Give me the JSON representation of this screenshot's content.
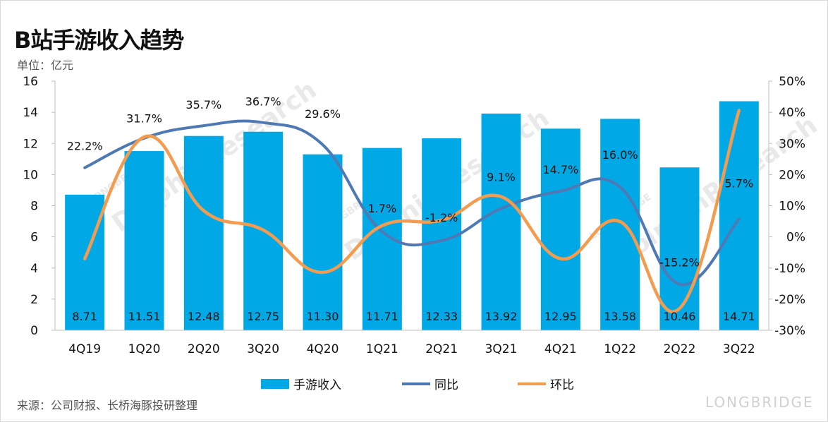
{
  "title": "B站手游收入趋势",
  "unit_label": "单位：亿元",
  "source_note": "来源：公司财报、长桥海豚投研整理",
  "watermark": {
    "brand": "LONGBRIDGE",
    "research": "DolphinResearch"
  },
  "colors": {
    "bar": "#00a9e6",
    "yoy": "#4e79b5",
    "qoq": "#f39c4f"
  },
  "chart_data": {
    "type": "bar",
    "categories": [
      "4Q19",
      "1Q20",
      "2Q20",
      "3Q20",
      "4Q20",
      "1Q21",
      "2Q21",
      "3Q21",
      "4Q21",
      "1Q22",
      "2Q22",
      "3Q22"
    ],
    "series": [
      {
        "name": "手游收入",
        "type": "bar",
        "axis": "left",
        "values": [
          8.71,
          11.51,
          12.48,
          12.75,
          11.3,
          11.71,
          12.33,
          13.92,
          12.95,
          13.58,
          10.46,
          14.71
        ],
        "labels": [
          "8.71",
          "11.51",
          "12.48",
          "12.75",
          "11.30",
          "11.71",
          "12.33",
          "13.92",
          "12.95",
          "13.58",
          "10.46",
          "14.71"
        ]
      },
      {
        "name": "同比",
        "type": "line",
        "axis": "right",
        "values": [
          22.2,
          31.7,
          35.7,
          36.7,
          29.6,
          1.7,
          -1.2,
          9.1,
          14.7,
          16.0,
          -15.2,
          5.7
        ],
        "labels": [
          "22.2%",
          "31.7%",
          "35.7%",
          "36.7%",
          "29.6%",
          "1.7%",
          "-1.2%",
          "9.1%",
          "14.7%",
          "16.0%",
          "-15.2%",
          "5.7%"
        ]
      },
      {
        "name": "环比",
        "type": "line",
        "axis": "right",
        "values": [
          -7,
          32.1,
          8.4,
          2.2,
          -11.4,
          3.6,
          5.3,
          12.9,
          -7.0,
          4.9,
          -23.0,
          40.6
        ]
      }
    ],
    "y_left": {
      "min": 0,
      "max": 16,
      "ticks": [
        "0",
        "2",
        "4",
        "6",
        "8",
        "10",
        "12",
        "14",
        "16"
      ]
    },
    "y_right": {
      "min": -30,
      "max": 50,
      "ticks": [
        "-30%",
        "-20%",
        "-10%",
        "0%",
        "10%",
        "20%",
        "30%",
        "40%",
        "50%"
      ]
    },
    "grid": false,
    "legend_position": "bottom"
  }
}
